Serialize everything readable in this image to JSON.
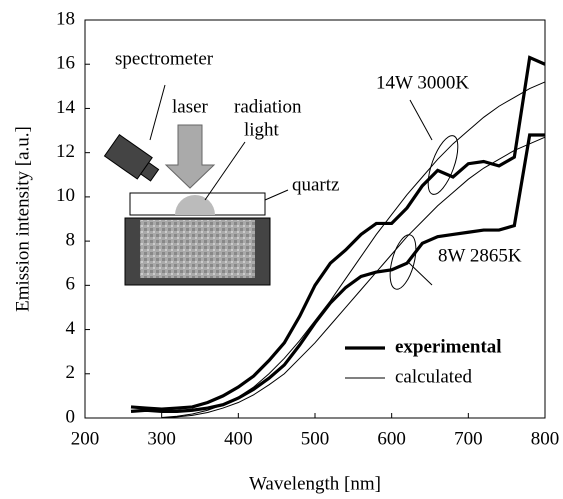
{
  "chart_data": {
    "type": "line",
    "x_label": "Wavelength [nm]",
    "y_label": "Emission intensity [a.u.]",
    "x": [
      260,
      280,
      300,
      320,
      340,
      360,
      380,
      400,
      420,
      440,
      460,
      480,
      500,
      520,
      540,
      560,
      580,
      600,
      620,
      640,
      660,
      680,
      700,
      720,
      740,
      760,
      780,
      800
    ],
    "series": [
      {
        "name": "experimental",
        "color": "#000000",
        "curves": [
          {
            "values": [
              0.5,
              0.45,
              0.4,
              0.45,
              0.5,
              0.7,
              1.0,
              1.4,
              1.9,
              2.6,
              3.4,
              4.6,
              6.0,
              7.0,
              7.6,
              8.3,
              8.8,
              8.8,
              9.5,
              10.5,
              11.2,
              10.9,
              11.5,
              11.6,
              11.4,
              11.8,
              16.3,
              16.0
            ]
          },
          {
            "values": [
              0.3,
              0.35,
              0.3,
              0.3,
              0.35,
              0.45,
              0.6,
              0.9,
              1.3,
              1.8,
              2.4,
              3.3,
              4.3,
              5.2,
              5.9,
              6.4,
              6.6,
              6.7,
              7.0,
              7.9,
              8.2,
              8.3,
              8.4,
              8.5,
              8.5,
              8.7,
              12.8,
              12.8
            ]
          }
        ]
      },
      {
        "name": "calculated",
        "color": "#000000",
        "curves": [
          {
            "values": [
              null,
              null,
              0.02,
              0.08,
              0.18,
              0.35,
              0.6,
              0.95,
              1.4,
              2.0,
              2.7,
              3.5,
              4.4,
              5.3,
              6.3,
              7.3,
              8.3,
              9.2,
              10.1,
              10.9,
              11.7,
              12.4,
              13.0,
              13.6,
              14.1,
              14.5,
              14.9,
              15.2
            ]
          },
          {
            "values": [
              null,
              null,
              0.01,
              0.05,
              0.12,
              0.25,
              0.45,
              0.7,
              1.05,
              1.5,
              2.0,
              2.7,
              3.4,
              4.2,
              5.0,
              5.8,
              6.6,
              7.4,
              8.2,
              8.9,
              9.6,
              10.2,
              10.8,
              11.3,
              11.7,
              12.1,
              12.4,
              12.7
            ]
          }
        ]
      }
    ],
    "annotations": [
      "14W 3000K",
      "8W 2865K"
    ],
    "inset_labels": [
      "spectrometer",
      "laser",
      "radiation",
      "light",
      "quartz"
    ],
    "xlim": [
      200,
      800
    ],
    "ylim": [
      0,
      18
    ],
    "xticks": [
      200,
      300,
      400,
      500,
      600,
      700,
      800
    ],
    "yticks": [
      0,
      2,
      4,
      6,
      8,
      10,
      12,
      14,
      16,
      18
    ]
  }
}
